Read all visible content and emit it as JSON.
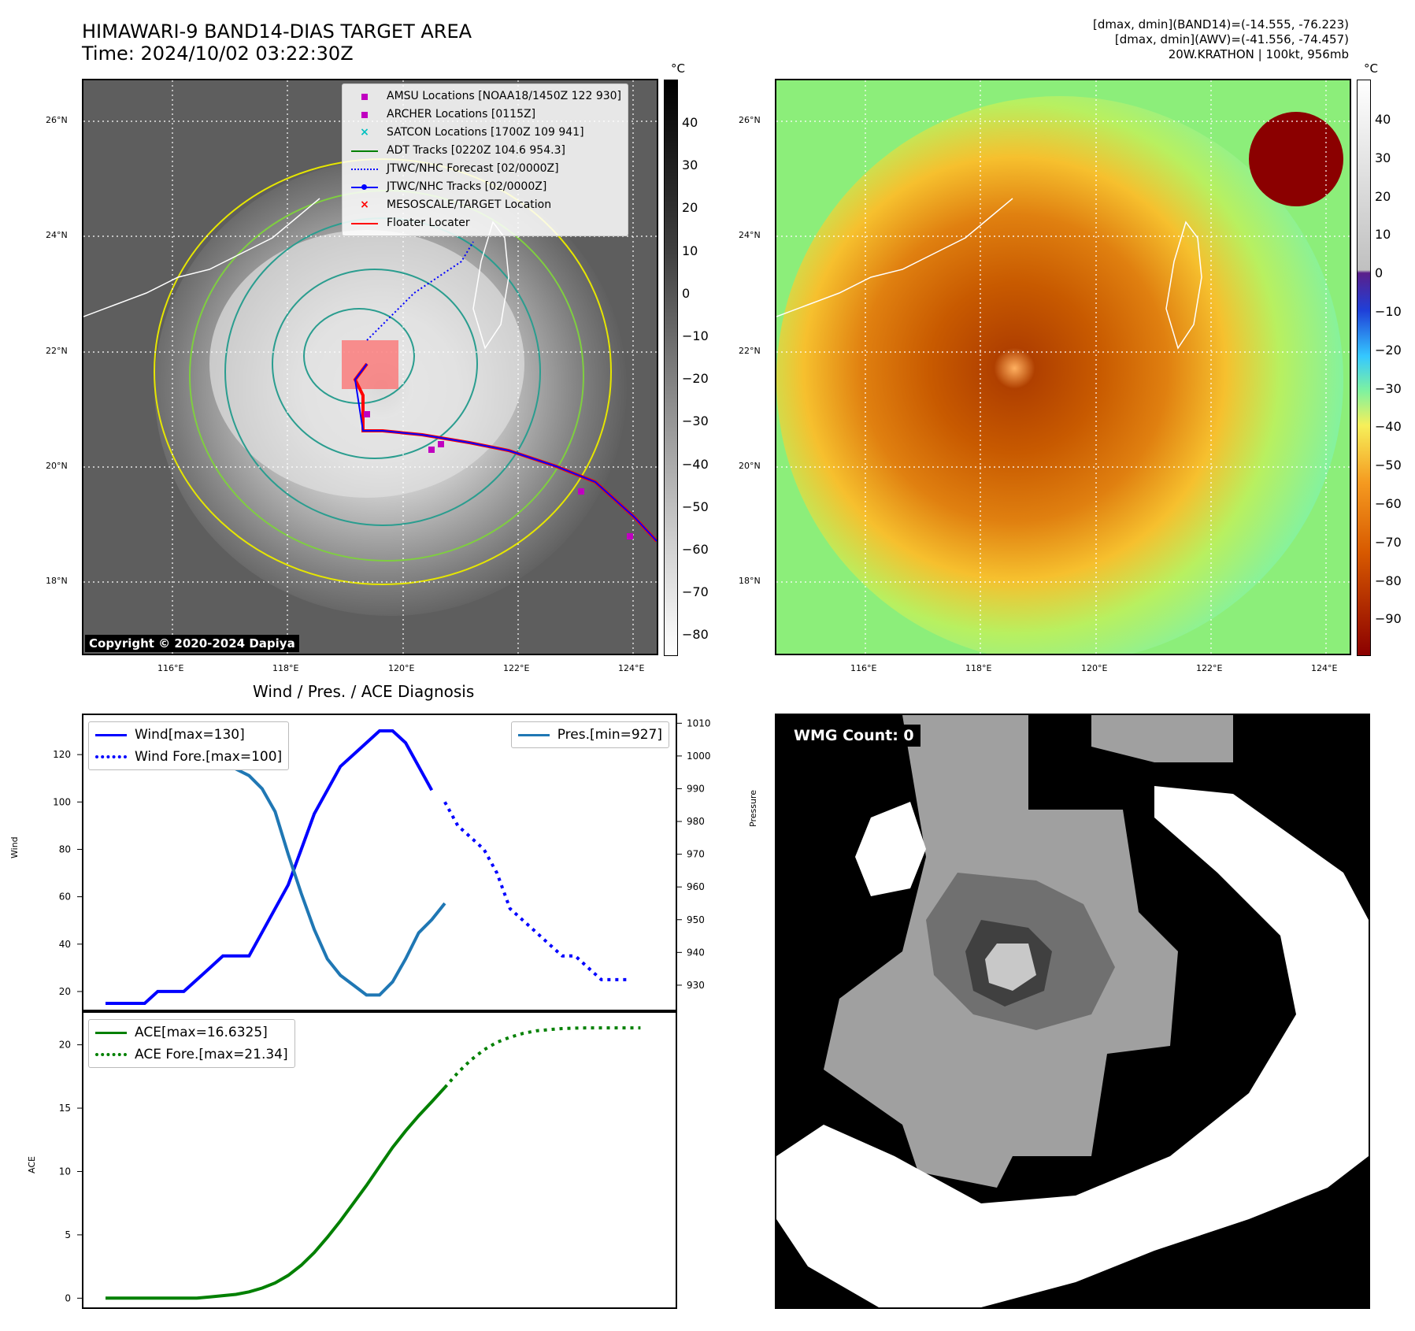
{
  "header": {
    "title_line1": "HIMAWARI-9 BAND14-DIAS TARGET AREA",
    "title_line2": "Time: 2024/10/02 03:22:30Z",
    "info_line1": "[dmax, dmin](BAND14)=(-14.555, -76.223)",
    "info_line2": "[dmax, dmin](AWV)=(-41.556, -74.457)",
    "info_line3": "20W.KRATHON | 100kt, 956mb"
  },
  "map": {
    "lat_labels": [
      "26°N",
      "24°N",
      "22°N",
      "20°N",
      "18°N"
    ],
    "lon_labels": [
      "116°E",
      "118°E",
      "120°E",
      "122°E",
      "124°E"
    ],
    "legend": [
      {
        "label": "AMSU Locations [NOAA18/1450Z 122 930]",
        "symbol": "square",
        "color": "#c000c0"
      },
      {
        "label": "ARCHER Locations [0115Z]",
        "symbol": "square",
        "color": "#c000c0"
      },
      {
        "label": "SATCON Locations [1700Z 109 941]",
        "symbol": "x",
        "color": "#00c0c0"
      },
      {
        "label": "ADT Tracks [0220Z 104.6 954.3]",
        "symbol": "line",
        "color": "#008000"
      },
      {
        "label": "JTWC/NHC Forecast [02/0000Z]",
        "symbol": "dotted",
        "color": "#0000ff"
      },
      {
        "label": "JTWC/NHC Tracks [02/0000Z]",
        "symbol": "line-dot",
        "color": "#0000ff"
      },
      {
        "label": "MESOSCALE/TARGET Location",
        "symbol": "x",
        "color": "#ff0000"
      },
      {
        "label": "Floater Locater",
        "symbol": "line",
        "color": "#ff0000"
      }
    ],
    "copyright": "Copyright © 2020-2024 Dapiya"
  },
  "colorbar_left": {
    "unit": "°C",
    "ticks": [
      "40",
      "30",
      "20",
      "10",
      "0",
      "−10",
      "−20",
      "−30",
      "−40",
      "−50",
      "−60",
      "−70",
      "−80"
    ]
  },
  "colorbar_right": {
    "unit": "°C",
    "ticks": [
      "40",
      "30",
      "20",
      "10",
      "0",
      "−10",
      "−20",
      "−30",
      "−40",
      "−50",
      "−60",
      "−70",
      "−80",
      "−90"
    ]
  },
  "wmg": {
    "label": "WMG Count: 0"
  },
  "chart_data": [
    {
      "type": "line",
      "title": "Wind / Pres. / ACE Diagnosis",
      "ylabel": "Wind",
      "ylabel_right": "Pressure",
      "ylim": [
        13,
        136
      ],
      "ylim_right": [
        923,
        1012
      ],
      "yticks": [
        "20",
        "40",
        "60",
        "80",
        "100",
        "120"
      ],
      "yticks_right": [
        "930",
        "940",
        "950",
        "960",
        "970",
        "980",
        "990",
        "1000",
        "1010"
      ],
      "series": [
        {
          "name": "Wind[max=130]",
          "axis": "left",
          "style": "solid",
          "color": "#0000ff",
          "x": [
            0,
            1,
            2,
            3,
            4,
            5,
            6,
            7,
            8,
            9,
            10,
            11,
            12,
            13,
            14,
            15,
            16,
            17,
            18,
            19,
            20,
            21,
            22,
            23,
            24,
            25
          ],
          "values": [
            15,
            15,
            15,
            15,
            20,
            20,
            20,
            25,
            30,
            35,
            35,
            35,
            45,
            55,
            65,
            80,
            95,
            105,
            115,
            120,
            125,
            130,
            130,
            125,
            115,
            105
          ]
        },
        {
          "name": "Wind Fore.[max=100]",
          "axis": "left",
          "style": "dotted",
          "color": "#0000ff",
          "x": [
            26,
            27,
            28,
            29,
            30,
            31,
            32,
            33,
            34,
            35,
            36,
            37,
            38,
            39,
            40
          ],
          "values": [
            100,
            90,
            85,
            80,
            70,
            55,
            50,
            45,
            40,
            35,
            35,
            30,
            25,
            25,
            25
          ]
        },
        {
          "name": "Pres.[min=927]",
          "axis": "right",
          "style": "solid",
          "color": "#1f77b4",
          "x": [
            0,
            1,
            2,
            3,
            4,
            5,
            6,
            7,
            8,
            9,
            10,
            11,
            12,
            13,
            14,
            15,
            16,
            17,
            18,
            19,
            20,
            21,
            22,
            23,
            24,
            25,
            26
          ],
          "values": [
            1008,
            1008,
            1008,
            1006,
            1004,
            1002,
            1000,
            999,
            999,
            998,
            996,
            994,
            990,
            983,
            970,
            958,
            947,
            938,
            933,
            930,
            927,
            927,
            931,
            938,
            946,
            950,
            955
          ]
        }
      ]
    },
    {
      "type": "line",
      "ylabel": "ACE",
      "ylim": [
        -0.6,
        22.4
      ],
      "yticks": [
        "0",
        "5",
        "10",
        "15",
        "20"
      ],
      "series": [
        {
          "name": "ACE[max=16.6325]",
          "style": "solid",
          "color": "#008000",
          "x": [
            0,
            1,
            2,
            3,
            4,
            5,
            6,
            7,
            8,
            9,
            10,
            11,
            12,
            13,
            14,
            15,
            16,
            17,
            18,
            19,
            20,
            21,
            22,
            23,
            24,
            25,
            26
          ],
          "values": [
            0,
            0,
            0,
            0,
            0,
            0,
            0,
            0,
            0.1,
            0.2,
            0.3,
            0.5,
            0.8,
            1.2,
            1.8,
            2.6,
            3.6,
            4.8,
            6.1,
            7.5,
            8.9,
            10.4,
            11.9,
            13.2,
            14.4,
            15.5,
            16.6325
          ]
        },
        {
          "name": "ACE Fore.[max=21.34]",
          "style": "dotted",
          "color": "#008000",
          "x": [
            26,
            27,
            28,
            29,
            30,
            31,
            32,
            33,
            34,
            35,
            36,
            37,
            38,
            39,
            40,
            41
          ],
          "values": [
            16.6325,
            17.8,
            18.8,
            19.6,
            20.2,
            20.6,
            20.9,
            21.1,
            21.2,
            21.28,
            21.32,
            21.34,
            21.34,
            21.34,
            21.34,
            21.34
          ]
        }
      ]
    }
  ]
}
